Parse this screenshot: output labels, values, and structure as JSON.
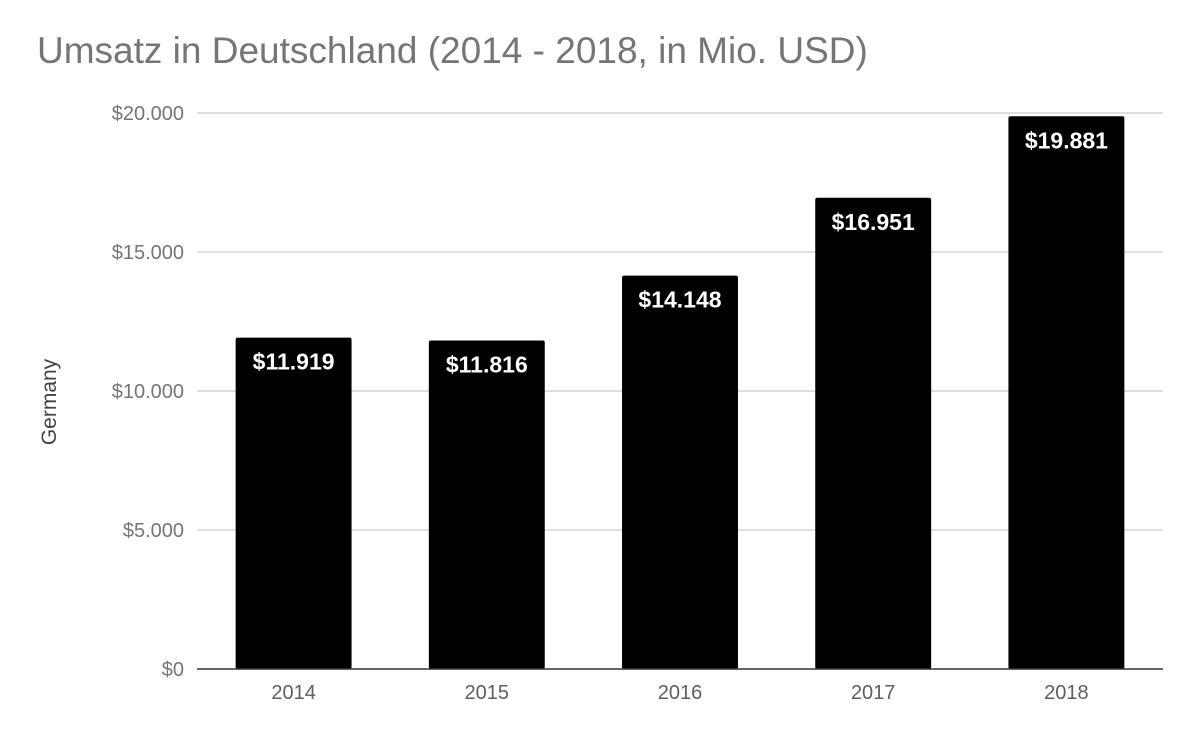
{
  "chart_data": {
    "type": "bar",
    "title": "Umsatz in Deutschland (2014 - 2018, in Mio. USD)",
    "xlabel": "",
    "ylabel": "Germany",
    "categories": [
      "2014",
      "2015",
      "2016",
      "2017",
      "2018"
    ],
    "values": [
      11919,
      11816,
      14148,
      16951,
      19881
    ],
    "data_labels": [
      "$11.919",
      "$11.816",
      "$14.148",
      "$16.951",
      "$19.881"
    ],
    "yticks": [
      {
        "value": 0,
        "label": "$0"
      },
      {
        "value": 5000,
        "label": "$5.000"
      },
      {
        "value": 10000,
        "label": "$10.000"
      },
      {
        "value": 15000,
        "label": "$15.000"
      },
      {
        "value": 20000,
        "label": "$20.000"
      }
    ],
    "ylim": [
      0,
      20000
    ],
    "grid": true,
    "legend": "none",
    "bar_color": "#000000",
    "data_label_color": "#ffffff"
  }
}
